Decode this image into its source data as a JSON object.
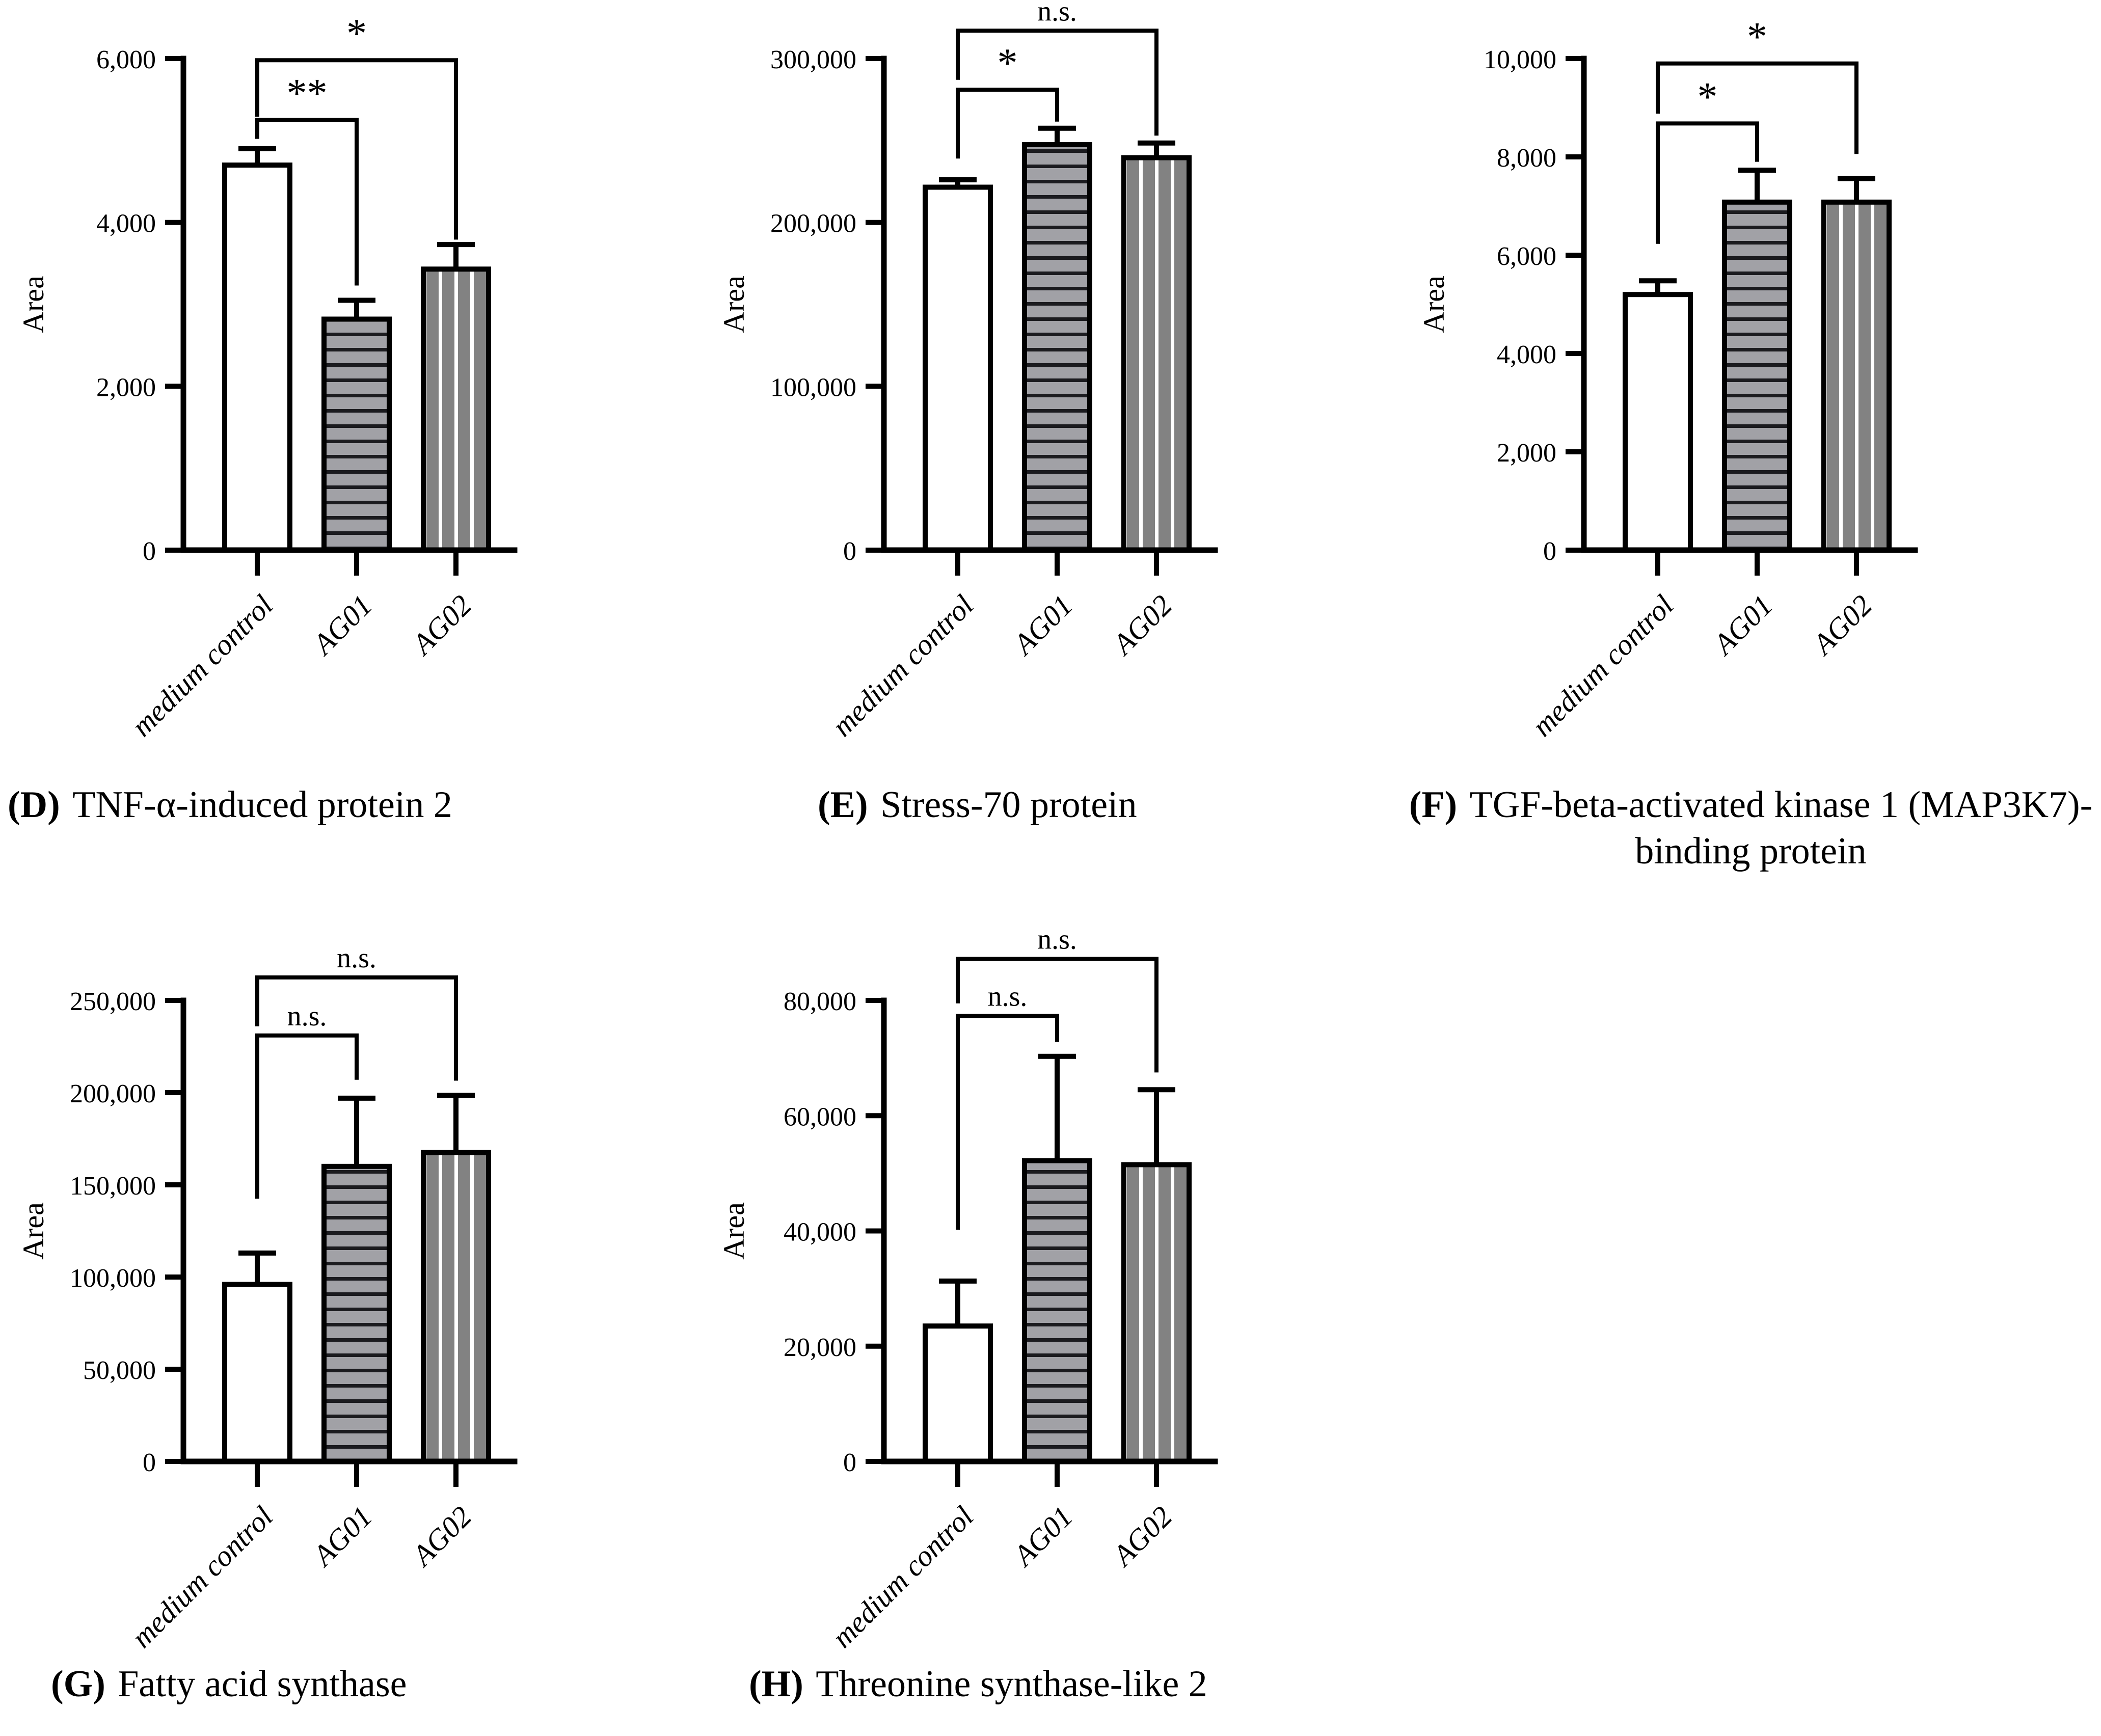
{
  "page": {
    "background": "#ffffff"
  },
  "style_colors": {
    "axis": "#000000",
    "bar_control_fill": "#ffffff",
    "bar_ag01_fill": "#a1a1a6",
    "bar_ag01_stripe": "#1b1b1f",
    "bar_ag02_fill": "#828282",
    "bar_ag02_stripe": "#ffffff"
  },
  "chart_data": [
    {
      "type": "bar",
      "panel_letter": "D",
      "caption_bold": "(D)",
      "caption_line1": "TNF-α-induced protein 2",
      "caption_line2": "",
      "ylabel": "Area",
      "xlabel": "",
      "categories": [
        "medium control",
        "AG01",
        "AG02"
      ],
      "values": [
        4700,
        2820,
        3430
      ],
      "errors_plus": [
        200,
        230,
        300
      ],
      "ylim": [
        0,
        6000
      ],
      "yticks": [
        0,
        2000,
        4000,
        6000
      ],
      "ytick_labels": [
        "0",
        "2,000",
        "4,000",
        "6,000"
      ],
      "grid": false,
      "legend": false,
      "bar_styles": [
        "white",
        "gray-horizontal-stripes",
        "gray-vertical-stripes"
      ],
      "significance": [
        {
          "from": 0,
          "to": 1,
          "label": "**",
          "line_value": 5250,
          "left_end": 5020,
          "right_end": 3230
        },
        {
          "from": 0,
          "to": 2,
          "label": "*",
          "line_value": 5980,
          "left_end": 5290,
          "right_end": 3790
        }
      ]
    },
    {
      "type": "bar",
      "panel_letter": "E",
      "caption_bold": "(E)",
      "caption_line1": "Stress-70 protein",
      "caption_line2": "",
      "ylabel": "Area",
      "xlabel": "",
      "categories": [
        "medium control",
        "AG01",
        "AG02"
      ],
      "values": [
        221500,
        247500,
        239500
      ],
      "errors_plus": [
        4500,
        10000,
        9000
      ],
      "ylim": [
        0,
        300000
      ],
      "yticks": [
        0,
        100000,
        200000,
        300000
      ],
      "ytick_labels": [
        "0",
        "100,000",
        "200,000",
        "300,000"
      ],
      "grid": false,
      "legend": false,
      "bar_styles": [
        "white",
        "gray-horizontal-stripes",
        "gray-vertical-stripes"
      ],
      "significance": [
        {
          "from": 0,
          "to": 1,
          "label": "*",
          "line_value": 281000,
          "left_end": 239000,
          "right_end": 261500
        },
        {
          "from": 0,
          "to": 2,
          "label": "n.s.",
          "line_value": 317000,
          "left_end": 287000,
          "right_end": 253000
        }
      ]
    },
    {
      "type": "bar",
      "panel_letter": "F",
      "caption_bold": "(F)",
      "caption_line1": "TGF-beta-activated kinase 1 (MAP3K7)-",
      "caption_line2": "binding protein",
      "ylabel": "Area",
      "xlabel": "",
      "categories": [
        "medium control",
        "AG01",
        "AG02"
      ],
      "values": [
        5200,
        7080,
        7080
      ],
      "errors_plus": [
        280,
        650,
        480
      ],
      "ylim": [
        0,
        10000
      ],
      "yticks": [
        0,
        2000,
        4000,
        6000,
        8000,
        10000
      ],
      "ytick_labels": [
        "0",
        "2,000",
        "4,000",
        "6,000",
        "8,000",
        "10,000"
      ],
      "grid": false,
      "legend": false,
      "bar_styles": [
        "white",
        "gray-horizontal-stripes",
        "gray-vertical-stripes"
      ],
      "significance": [
        {
          "from": 0,
          "to": 1,
          "label": "*",
          "line_value": 8680,
          "left_end": 6230,
          "right_end": 7900
        },
        {
          "from": 0,
          "to": 2,
          "label": "*",
          "line_value": 9900,
          "left_end": 8880,
          "right_end": 8060
        }
      ]
    },
    {
      "type": "bar",
      "panel_letter": "G",
      "caption_bold": "(G)",
      "caption_line1": "Fatty acid synthase",
      "caption_line2": "",
      "ylabel": "Area",
      "xlabel": "",
      "categories": [
        "medium control",
        "AG01",
        "AG02"
      ],
      "values": [
        96000,
        160000,
        167500
      ],
      "errors_plus": [
        17000,
        37000,
        31000
      ],
      "ylim": [
        0,
        250000
      ],
      "yticks": [
        0,
        50000,
        100000,
        150000,
        200000,
        250000
      ],
      "ytick_labels": [
        "0",
        "50,000",
        "100,000",
        "150,000",
        "200,000",
        "250,000"
      ],
      "grid": false,
      "legend": false,
      "bar_styles": [
        "white",
        "gray-horizontal-stripes",
        "gray-vertical-stripes"
      ],
      "significance": [
        {
          "from": 0,
          "to": 1,
          "label": "n.s.",
          "line_value": 231000,
          "left_end": 142500,
          "right_end": 207000
        },
        {
          "from": 0,
          "to": 2,
          "label": "n.s.",
          "line_value": 262500,
          "left_end": 236000,
          "right_end": 206500
        }
      ]
    },
    {
      "type": "bar",
      "panel_letter": "H",
      "caption_bold": "(H)",
      "caption_line1": "Threonine synthase-like 2",
      "caption_line2": "",
      "ylabel": "Area",
      "xlabel": "",
      "categories": [
        "medium control",
        "AG01",
        "AG02"
      ],
      "values": [
        23500,
        52200,
        51500
      ],
      "errors_plus": [
        7800,
        18100,
        13000
      ],
      "ylim": [
        0,
        80000
      ],
      "yticks": [
        0,
        20000,
        40000,
        60000,
        80000
      ],
      "ytick_labels": [
        "0",
        "20,000",
        "40,000",
        "60,000",
        "80,000"
      ],
      "grid": false,
      "legend": false,
      "bar_styles": [
        "white",
        "gray-horizontal-stripes",
        "gray-vertical-stripes"
      ],
      "significance": [
        {
          "from": 0,
          "to": 1,
          "label": "n.s.",
          "line_value": 77300,
          "left_end": 40200,
          "right_end": 72800
        },
        {
          "from": 0,
          "to": 2,
          "label": "n.s.",
          "line_value": 87200,
          "left_end": 79500,
          "right_end": 67500
        }
      ]
    }
  ]
}
